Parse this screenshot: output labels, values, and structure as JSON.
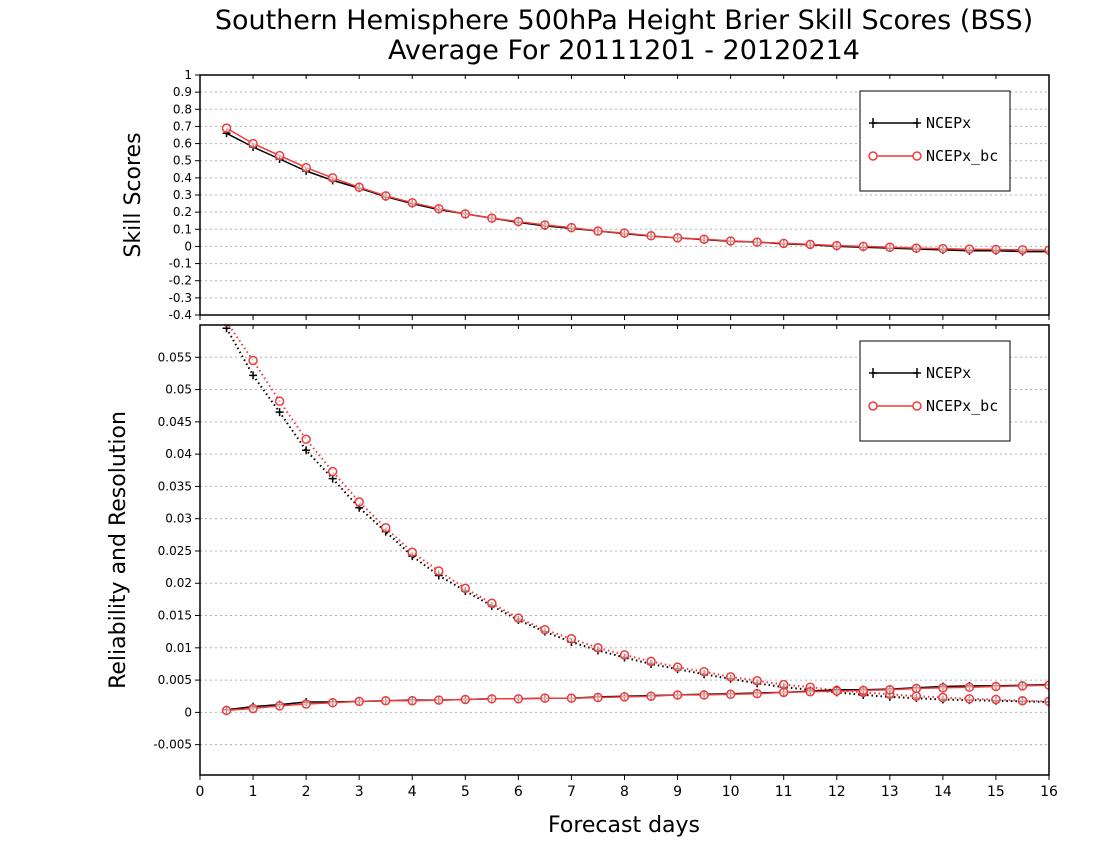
{
  "title_line1": "Southern Hemisphere 500hPa Height Brier Skill Scores (BSS)",
  "title_line2": "Average For 20111201 - 20120214",
  "xlabel": "Forecast days",
  "colors": {
    "ncepx": "#000000",
    "ncepx_bc": "#ee3b3b",
    "grid": "#b0b0b0"
  },
  "chart_data": [
    {
      "type": "line",
      "panel": "top",
      "ylabel": "Skill Scores",
      "xlim": [
        0,
        16
      ],
      "ylim": [
        -0.4,
        1
      ],
      "x_ticks": [
        "0",
        "1",
        "2",
        "3",
        "4",
        "5",
        "6",
        "7",
        "8",
        "9",
        "10",
        "11",
        "12",
        "13",
        "14",
        "15",
        "16"
      ],
      "y_ticks": [
        "1",
        "0.9",
        "0.8",
        "0.7",
        "0.6",
        "0.5",
        "0.4",
        "0.3",
        "0.2",
        "0.1",
        "0",
        "-0.1",
        "-0.2",
        "-0.3",
        "-0.4"
      ],
      "y_tick_values": [
        1,
        0.9,
        0.8,
        0.7,
        0.6,
        0.5,
        0.4,
        0.3,
        0.2,
        0.1,
        0,
        -0.1,
        -0.2,
        -0.3,
        -0.4
      ],
      "grid": true,
      "legend": {
        "placement": "top-right",
        "entries": [
          "NCEPx",
          "NCEPx_bc"
        ]
      },
      "x": [
        0.5,
        1,
        1.5,
        2,
        2.5,
        3,
        3.5,
        4,
        4.5,
        5,
        5.5,
        6,
        6.5,
        7,
        7.5,
        8,
        8.5,
        9,
        9.5,
        10,
        10.5,
        11,
        11.5,
        12,
        12.5,
        13,
        13.5,
        14,
        14.5,
        15,
        15.5,
        16
      ],
      "series": [
        {
          "name": "NCEPx",
          "marker": "plus",
          "line": "solid",
          "values": [
            0.66,
            0.58,
            0.51,
            0.44,
            0.385,
            0.34,
            0.29,
            0.25,
            0.215,
            0.19,
            0.165,
            0.14,
            0.12,
            0.105,
            0.09,
            0.075,
            0.06,
            0.05,
            0.04,
            0.03,
            0.025,
            0.015,
            0.01,
            0.0,
            -0.005,
            -0.01,
            -0.015,
            -0.02,
            -0.025,
            -0.025,
            -0.03,
            -0.03
          ]
        },
        {
          "name": "NCEPx_bc",
          "marker": "circle",
          "line": "solid",
          "values": [
            0.69,
            0.6,
            0.53,
            0.46,
            0.4,
            0.345,
            0.295,
            0.255,
            0.22,
            0.19,
            0.165,
            0.145,
            0.125,
            0.11,
            0.09,
            0.078,
            0.062,
            0.05,
            0.042,
            0.032,
            0.025,
            0.018,
            0.012,
            0.005,
            0.0,
            -0.005,
            -0.01,
            -0.013,
            -0.016,
            -0.018,
            -0.02,
            -0.022
          ]
        }
      ]
    },
    {
      "type": "line",
      "panel": "bottom",
      "ylabel": "Reliability and Resolution",
      "xlim": [
        0,
        16
      ],
      "ylim": [
        -0.0097,
        0.06
      ],
      "x_ticks": [
        "0",
        "1",
        "2",
        "3",
        "4",
        "5",
        "6",
        "7",
        "8",
        "9",
        "10",
        "11",
        "12",
        "13",
        "14",
        "15",
        "16"
      ],
      "y_ticks": [
        "0.055",
        "0.05",
        "0.045",
        "0.04",
        "0.035",
        "0.03",
        "0.025",
        "0.02",
        "0.015",
        "0.01",
        "0.005",
        "0",
        "-0.005"
      ],
      "y_tick_values": [
        0.055,
        0.05,
        0.045,
        0.04,
        0.035,
        0.03,
        0.025,
        0.02,
        0.015,
        0.01,
        0.005,
        0,
        -0.005
      ],
      "grid": true,
      "legend": {
        "placement": "top-right",
        "entries": [
          "NCEPx",
          "NCEPx_bc"
        ]
      },
      "x": [
        0.5,
        1,
        1.5,
        2,
        2.5,
        3,
        3.5,
        4,
        4.5,
        5,
        5.5,
        6,
        6.5,
        7,
        7.5,
        8,
        8.5,
        9,
        9.5,
        10,
        10.5,
        11,
        11.5,
        12,
        12.5,
        13,
        13.5,
        14,
        14.5,
        15,
        15.5,
        16
      ],
      "series": [
        {
          "name": "NCEPx",
          "role": "resolution",
          "marker": "plus",
          "line": "dotted",
          "values": [
            0.0595,
            0.0522,
            0.0465,
            0.0406,
            0.0362,
            0.0317,
            0.028,
            0.0242,
            0.0212,
            0.0188,
            0.0165,
            0.0143,
            0.0125,
            0.0109,
            0.0096,
            0.0085,
            0.0075,
            0.0067,
            0.0059,
            0.0052,
            0.0045,
            0.0039,
            0.0035,
            0.0031,
            0.0027,
            0.0024,
            0.0022,
            0.002,
            0.0019,
            0.0018,
            0.0017,
            0.0016
          ]
        },
        {
          "name": "NCEPx_bc",
          "role": "resolution",
          "marker": "circle",
          "line": "dotted",
          "values": [
            0.0605,
            0.0545,
            0.0482,
            0.0423,
            0.0373,
            0.0326,
            0.0286,
            0.0248,
            0.0219,
            0.0192,
            0.0169,
            0.0146,
            0.0128,
            0.0114,
            0.01,
            0.0089,
            0.0079,
            0.007,
            0.0063,
            0.0055,
            0.0049,
            0.0043,
            0.0039,
            0.0034,
            0.0031,
            0.0028,
            0.0025,
            0.0023,
            0.0021,
            0.002,
            0.0018,
            0.0017
          ]
        },
        {
          "name": "NCEPx",
          "role": "reliability",
          "marker": "plus",
          "line": "solid",
          "values": [
            0.0004,
            0.0009,
            0.0012,
            0.0016,
            0.0016,
            0.0017,
            0.0018,
            0.0019,
            0.0019,
            0.002,
            0.0021,
            0.0021,
            0.0022,
            0.0022,
            0.0024,
            0.0025,
            0.0026,
            0.0027,
            0.0028,
            0.0029,
            0.003,
            0.0031,
            0.0033,
            0.0035,
            0.0035,
            0.0036,
            0.0038,
            0.004,
            0.0041,
            0.0041,
            0.0042,
            0.0043
          ]
        },
        {
          "name": "NCEPx_bc",
          "role": "reliability",
          "marker": "circle",
          "line": "solid",
          "values": [
            0.0003,
            0.0006,
            0.001,
            0.0013,
            0.0015,
            0.0017,
            0.0018,
            0.0018,
            0.0019,
            0.002,
            0.0021,
            0.0021,
            0.0022,
            0.0022,
            0.0023,
            0.0024,
            0.0025,
            0.0027,
            0.0027,
            0.0028,
            0.0029,
            0.0031,
            0.0032,
            0.0033,
            0.0034,
            0.0035,
            0.0037,
            0.0038,
            0.0039,
            0.004,
            0.0041,
            0.0042
          ]
        }
      ]
    }
  ]
}
